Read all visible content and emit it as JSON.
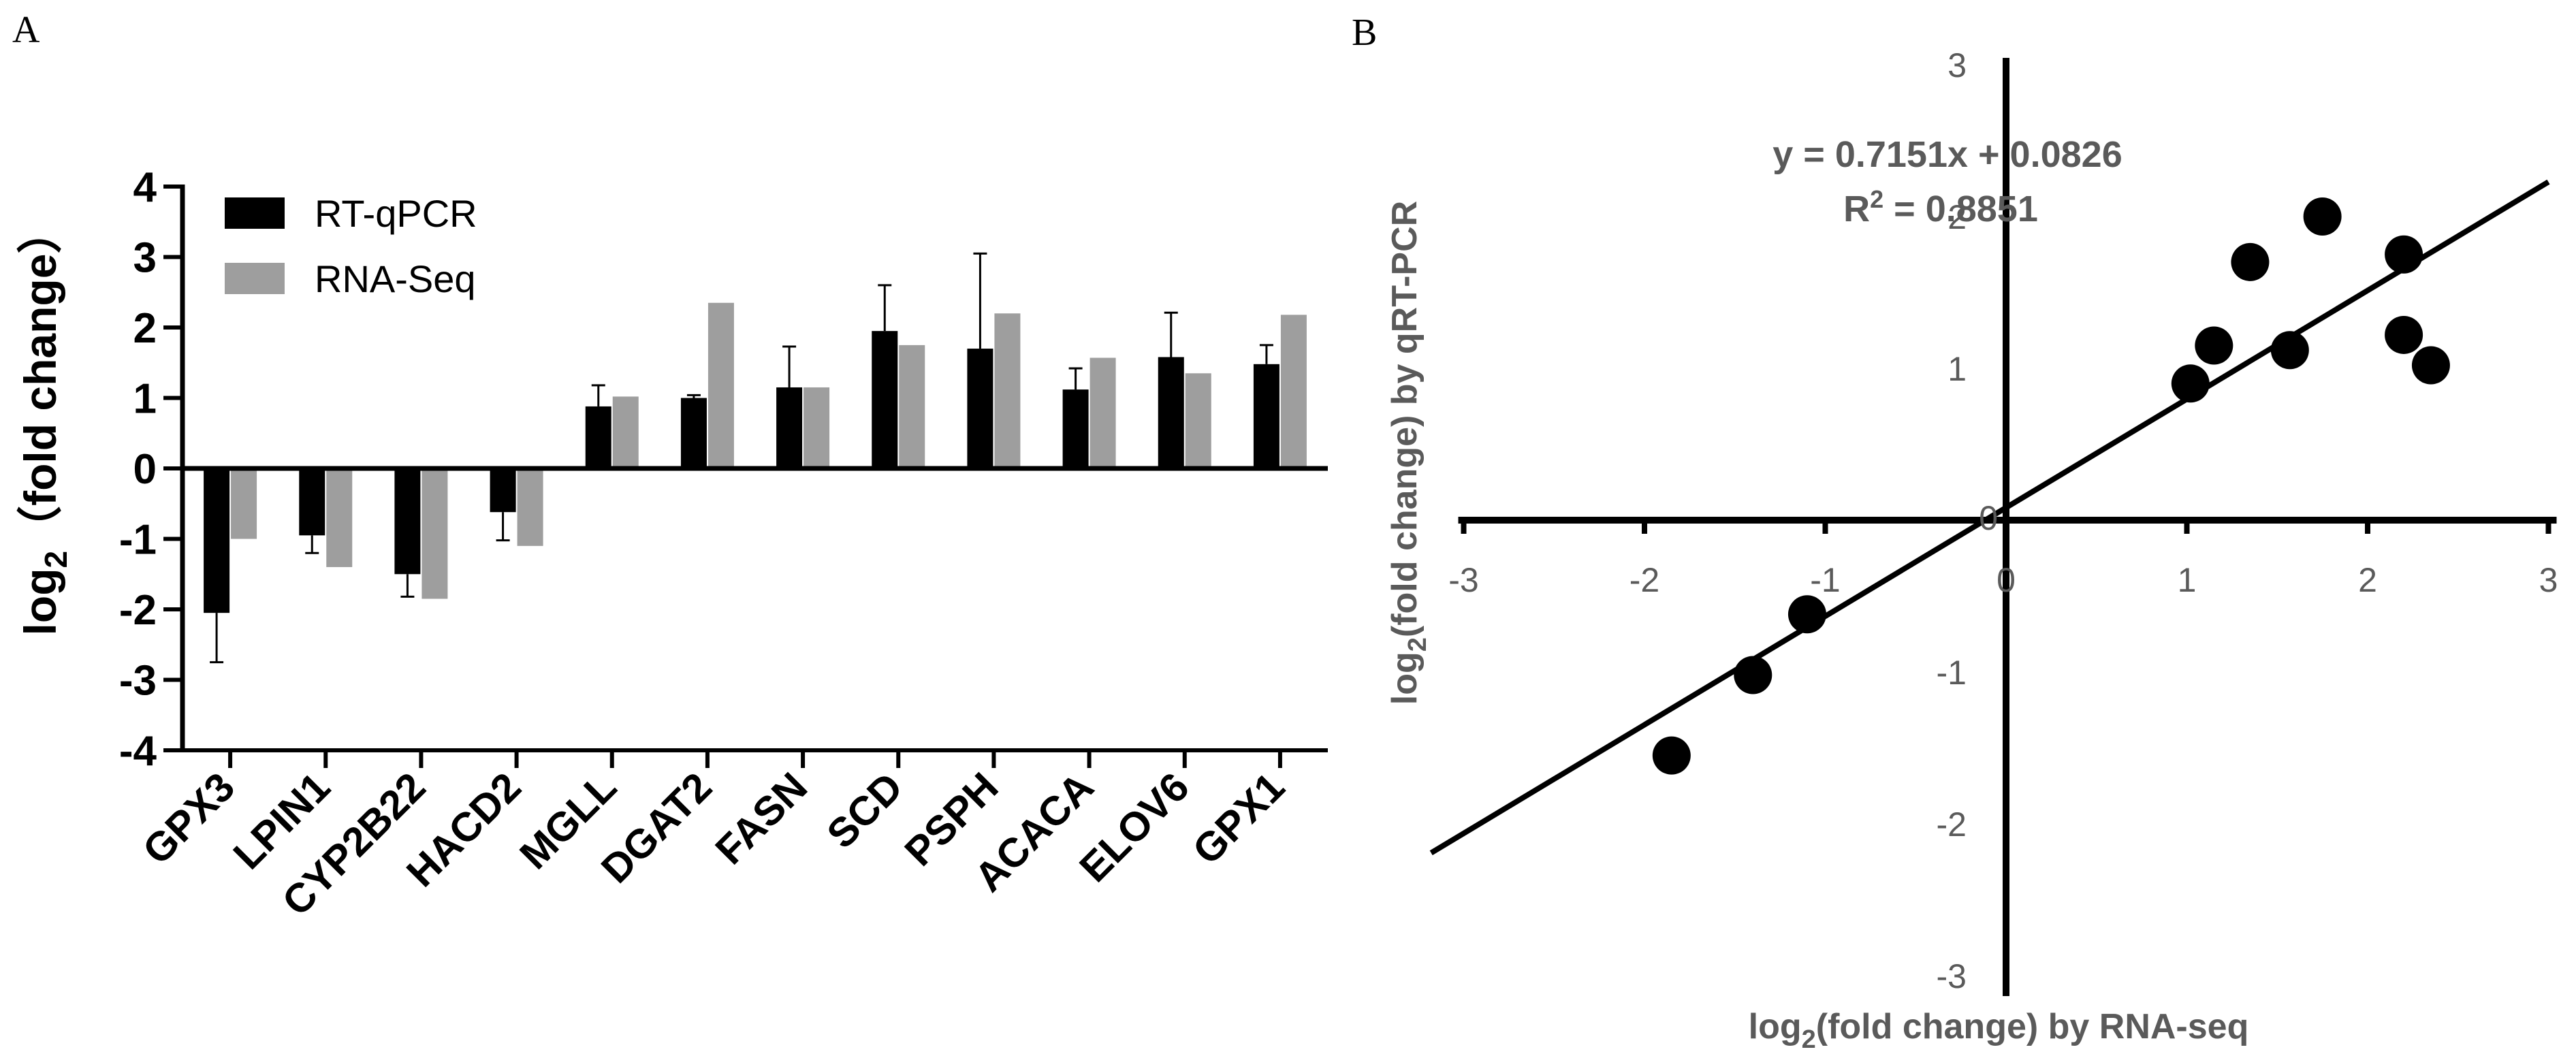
{
  "figure": {
    "panel_a_letter": "A",
    "panel_b_letter": "B"
  },
  "chart_data": [
    {
      "type": "bar",
      "panel": "A",
      "title": "",
      "xlabel": "",
      "ylabel": "log2（fold change）",
      "ylabel_parts": {
        "pre": "log",
        "sub": "2",
        "post": "（fold change）"
      },
      "ylim": [
        -4,
        4
      ],
      "yticks": [
        -4,
        -3,
        -2,
        -1,
        0,
        1,
        2,
        3,
        4
      ],
      "ytick_labels": [
        "-4",
        "-3",
        "-2",
        "-1",
        "0",
        "1",
        "2",
        "3",
        "4"
      ],
      "legend_position": "top-left",
      "categories": [
        "GPX3",
        "LPIN1",
        "CYP2B22",
        "HACD2",
        "MGLL",
        "DGAT2",
        "FASN",
        "SCD",
        "PSPH",
        "ACACA",
        "ELOV6",
        "GPX1"
      ],
      "series": [
        {
          "name": "RT-qPCR",
          "color": "#000000",
          "values": [
            -2.05,
            -0.95,
            -1.5,
            -0.62,
            0.88,
            1.0,
            1.15,
            1.95,
            1.7,
            1.12,
            1.58,
            1.48
          ],
          "errors": [
            0.7,
            0.25,
            0.32,
            0.4,
            0.3,
            0.04,
            0.58,
            0.65,
            1.35,
            0.3,
            0.63,
            0.27
          ]
        },
        {
          "name": "RNA-Seq",
          "color": "#9e9e9e",
          "values": [
            -1.0,
            -1.4,
            -1.85,
            -1.1,
            1.02,
            2.35,
            1.15,
            1.75,
            2.2,
            1.57,
            1.35,
            2.18
          ]
        }
      ]
    },
    {
      "type": "scatter",
      "panel": "B",
      "title": "",
      "xlabel": "log2(fold change) by RNA-seq",
      "xlabel_parts": {
        "pre": "log",
        "sub": "2",
        "post": "(fold change) by RNA-seq"
      },
      "ylabel": "log2(fold change) by qRT-PCR",
      "ylabel_parts": {
        "pre": "log",
        "sub": "2",
        "post": "(fold change) by qRT-PCR"
      },
      "xlim": [
        -3,
        3
      ],
      "ylim": [
        -3,
        3
      ],
      "xticks": [
        -3,
        -2,
        -1,
        0,
        1,
        2,
        3
      ],
      "xtick_labels": [
        "-3",
        "-2",
        "-1",
        "0",
        "1",
        "2",
        "3"
      ],
      "yticks": [
        -3,
        -2,
        -1,
        0,
        1,
        2,
        3
      ],
      "ytick_labels": [
        "-3",
        "-2",
        "-1",
        "0",
        "1",
        "2",
        "3"
      ],
      "equation": "y = 0.7151x + 0.0826",
      "r2_parts": {
        "pre": "R",
        "sup": "2",
        "post": " = 0.8851"
      },
      "fit": {
        "slope": 0.7151,
        "intercept": 0.0826
      },
      "points": [
        {
          "x": -1.85,
          "y": -1.55
        },
        {
          "x": -1.4,
          "y": -1.02
        },
        {
          "x": -1.1,
          "y": -0.62
        },
        {
          "x": 1.02,
          "y": 0.9
        },
        {
          "x": 1.15,
          "y": 1.15
        },
        {
          "x": 1.35,
          "y": 1.7
        },
        {
          "x": 1.57,
          "y": 1.12
        },
        {
          "x": 1.75,
          "y": 2.0
        },
        {
          "x": 2.2,
          "y": 1.75
        },
        {
          "x": 2.2,
          "y": 1.22
        },
        {
          "x": 2.35,
          "y": 1.02
        }
      ]
    }
  ]
}
